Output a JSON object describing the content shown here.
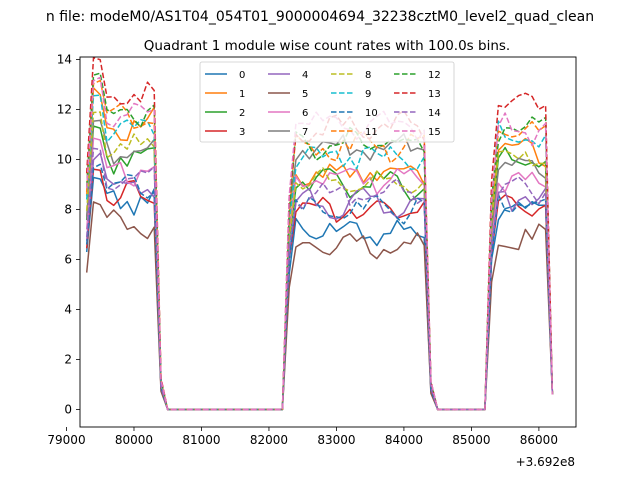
{
  "suptitle": "n file: modeM0/AS1T04_054T01_9000004694_32238cztM0_level2_quad_clean",
  "chart_data": {
    "type": "line",
    "title": "Quadrant 1 module wise count rates with 100.0s bins.",
    "xlabel": "",
    "ylabel": "",
    "x_offset_label": "+3.692e8",
    "xlim": [
      79200,
      86550
    ],
    "ylim": [
      -0.7,
      14.1
    ],
    "xticks": [
      79000,
      80000,
      81000,
      82000,
      83000,
      84000,
      85000,
      86000
    ],
    "xtick_labels": [
      "79000",
      "80000",
      "81000",
      "82000",
      "83000",
      "84000",
      "85000",
      "86000"
    ],
    "yticks": [
      0,
      2,
      4,
      6,
      8,
      10,
      12,
      14
    ],
    "ytick_labels": [
      "0",
      "2",
      "4",
      "6",
      "8",
      "10",
      "12",
      "14"
    ],
    "legend_position": "top-center",
    "series": [
      {
        "name": "0",
        "color": "#1f77b4",
        "dash": false,
        "levels": [
          8.4,
          7.2,
          8.0
        ]
      },
      {
        "name": "1",
        "color": "#ff7f0e",
        "dash": false,
        "levels": [
          11.4,
          9.5,
          10.4
        ]
      },
      {
        "name": "2",
        "color": "#2ca02c",
        "dash": false,
        "levels": [
          10.1,
          9.0,
          9.9
        ]
      },
      {
        "name": "3",
        "color": "#d62728",
        "dash": false,
        "levels": [
          8.6,
          8.0,
          8.3
        ]
      },
      {
        "name": "4",
        "color": "#9467bd",
        "dash": false,
        "levels": [
          9.0,
          8.2,
          8.5
        ]
      },
      {
        "name": "5",
        "color": "#8c564b",
        "dash": false,
        "levels": [
          7.3,
          6.5,
          6.8
        ]
      },
      {
        "name": "6",
        "color": "#e377c2",
        "dash": false,
        "levels": [
          9.6,
          9.2,
          9.2
        ]
      },
      {
        "name": "7",
        "color": "#7f7f7f",
        "dash": false,
        "levels": [
          10.3,
          10.4,
          9.6
        ]
      },
      {
        "name": "8",
        "color": "#bcbd22",
        "dash": true,
        "levels": [
          10.6,
          9.1,
          10.0
        ]
      },
      {
        "name": "9",
        "color": "#17becf",
        "dash": true,
        "levels": [
          11.2,
          10.1,
          10.9
        ]
      },
      {
        "name": "10",
        "color": "#1f77b4",
        "dash": true,
        "levels": [
          8.8,
          8.0,
          8.2
        ]
      },
      {
        "name": "11",
        "color": "#ff7f0e",
        "dash": true,
        "levels": [
          11.6,
          10.5,
          11.1
        ]
      },
      {
        "name": "12",
        "color": "#2ca02c",
        "dash": true,
        "levels": [
          11.9,
          10.6,
          11.3
        ]
      },
      {
        "name": "13",
        "color": "#d62728",
        "dash": true,
        "levels": [
          12.6,
          11.3,
          12.2
        ]
      },
      {
        "name": "14",
        "color": "#9467bd",
        "dash": true,
        "levels": [
          9.2,
          8.6,
          8.8
        ]
      },
      {
        "name": "15",
        "color": "#e377c2",
        "dash": true,
        "levels": [
          11.8,
          11.4,
          11.2
        ]
      }
    ],
    "segments": [
      {
        "start": 79300,
        "end": 80400
      },
      {
        "start": 82300,
        "end": 84400
      },
      {
        "start": 85300,
        "end": 86200
      }
    ]
  }
}
